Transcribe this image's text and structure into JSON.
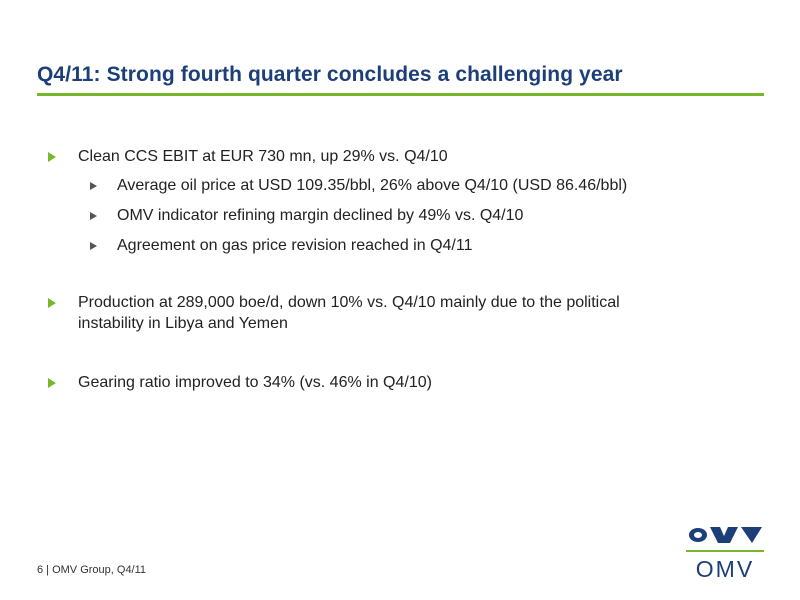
{
  "slide": {
    "title": "Q4/11: Strong fourth quarter concludes a challenging year"
  },
  "bullets": [
    {
      "text": "Clean CCS EBIT at EUR 730 mn, up 29% vs. Q4/10",
      "sub": [
        "Average oil price at USD 109.35/bbl, 26% above Q4/10 (USD 86.46/bbl)",
        "OMV indicator refining margin declined by 49% vs. Q4/10",
        "Agreement on gas price revision reached in Q4/11"
      ]
    },
    {
      "line1": "Production at 289,000 boe/d, down 10% vs. Q4/10 mainly due to the political",
      "line2": "instability in Libya and Yemen"
    },
    {
      "text": "Gearing ratio improved to 34% (vs. 46% in Q4/10)"
    }
  ],
  "footer": {
    "text": "6 | OMV Group, Q4/11"
  },
  "logo": {
    "wordmark": "OMV",
    "accent_color": "#76b82a",
    "brand_color": "#1c3f7a"
  }
}
